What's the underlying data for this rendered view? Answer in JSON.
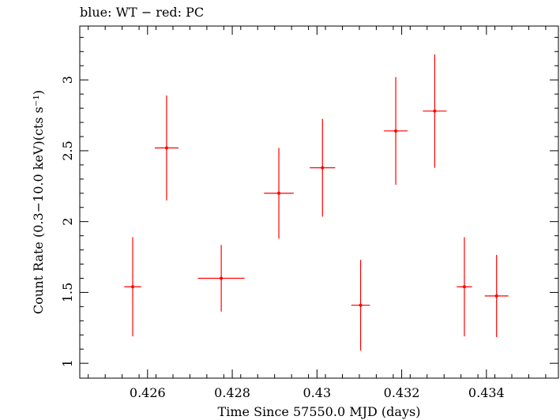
{
  "header": {
    "title": "blue: WT − red: PC"
  },
  "chart_data": {
    "type": "scatter",
    "title": "blue: WT − red: PC",
    "xlabel": "Time Since 57550.0 MJD (days)",
    "ylabel": "Count Rate (0.3−10.0 keV)(cts s⁻¹)",
    "xlim": [
      0.4244,
      0.4357
    ],
    "ylim": [
      0.895,
      3.38
    ],
    "xticks": [
      {
        "value": 0.426,
        "label": "0.426"
      },
      {
        "value": 0.428,
        "label": "0.428"
      },
      {
        "value": 0.43,
        "label": "0.43"
      },
      {
        "value": 0.432,
        "label": "0.432"
      },
      {
        "value": 0.434,
        "label": "0.434"
      }
    ],
    "yticks": [
      {
        "value": 1,
        "label": "1"
      },
      {
        "value": 1.5,
        "label": "1.5"
      },
      {
        "value": 2,
        "label": "2"
      },
      {
        "value": 2.5,
        "label": "2.5"
      },
      {
        "value": 3,
        "label": "3"
      }
    ],
    "grid": false,
    "series": [
      {
        "color": "#ff0000",
        "points": [
          {
            "x": 0.42565,
            "y": 1.54,
            "xerr": 0.0002,
            "yerr": 0.35
          },
          {
            "x": 0.42645,
            "y": 2.52,
            "xerr": 0.00028,
            "yerr": 0.37
          },
          {
            "x": 0.42774,
            "y": 1.6,
            "xerr": 0.00055,
            "yerr": 0.235
          },
          {
            "x": 0.4291,
            "y": 2.2,
            "xerr": 0.00035,
            "yerr": 0.32
          },
          {
            "x": 0.43013,
            "y": 2.38,
            "xerr": 0.0003,
            "yerr": 0.345
          },
          {
            "x": 0.43103,
            "y": 1.41,
            "xerr": 0.00022,
            "yerr": 0.32
          },
          {
            "x": 0.43186,
            "y": 2.64,
            "xerr": 0.00028,
            "yerr": 0.38
          },
          {
            "x": 0.43278,
            "y": 2.78,
            "xerr": 0.00028,
            "yerr": 0.4
          },
          {
            "x": 0.43348,
            "y": 1.54,
            "xerr": 0.00018,
            "yerr": 0.35
          },
          {
            "x": 0.43424,
            "y": 1.475,
            "xerr": 0.00028,
            "yerr": 0.29
          }
        ]
      }
    ]
  }
}
